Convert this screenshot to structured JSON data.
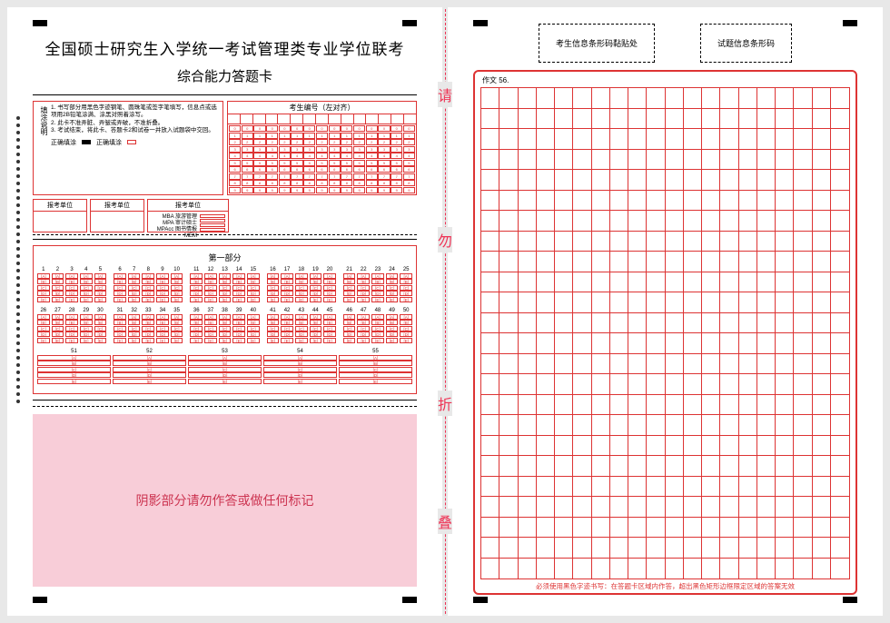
{
  "title": "全国硕士研究生入学统一考试管理类专业学位联考",
  "subtitle": "综合能力答题卡",
  "fold_chars": [
    "请",
    "勿",
    "折",
    "叠"
  ],
  "instructions_label": "填涂说明",
  "instructions": [
    "1. 书写部分用黑色字迹钢笔、圆珠笔或签字笔填写，信息点或选项用2B铅笔涂满、涂黑对照着涂写。",
    "2. 此卡不准弄脏、弄皱或弄破，不准折叠。",
    "3. 考试结束，将此卡、答题卡2和试卷一并放入试题袋中交回。"
  ],
  "fill_correct": "正确填涂",
  "fill_wrong": "正确填涂",
  "cand_num_label": "考生编号（左对齐）",
  "unit_labels": [
    "报考单位",
    "报考单位",
    "报考单位"
  ],
  "degree_opts": [
    "MBA",
    "MPA",
    "MPAcc",
    "MEM"
  ],
  "degree_types": [
    "旅游管理",
    "审计硕士",
    "图书情报",
    ""
  ],
  "section1_title": "第一部分",
  "mcq_rows": [
    [
      [
        1,
        2,
        3,
        4,
        5
      ],
      [
        6,
        7,
        8,
        9,
        10
      ],
      [
        11,
        12,
        13,
        14,
        15
      ],
      [
        16,
        17,
        18,
        19,
        20
      ],
      [
        21,
        22,
        23,
        24,
        25
      ]
    ],
    [
      [
        26,
        27,
        28,
        29,
        30
      ],
      [
        31,
        32,
        33,
        34,
        35
      ],
      [
        36,
        37,
        38,
        39,
        40
      ],
      [
        41,
        42,
        43,
        44,
        45
      ],
      [
        46,
        47,
        48,
        49,
        50
      ]
    ],
    [
      [
        51,
        52,
        53,
        54,
        55
      ]
    ]
  ],
  "mcq_options": [
    "A",
    "B",
    "C",
    "D",
    "E"
  ],
  "reserved_text": "阴影部分请勿作答或做任何标记",
  "barcode1": "考生信息条形码黏贴处",
  "barcode2": "试题信息条形码",
  "essay_label": "作文 56.",
  "essay_rows": 24,
  "essay_cols": 20,
  "essay_footer": "必须使用黑色字迹书写：在答题卡区域内作答，超出黑色矩形边框限定区域的答案无效",
  "colors": {
    "red": "#d33",
    "pink": "#f8cdd8"
  }
}
